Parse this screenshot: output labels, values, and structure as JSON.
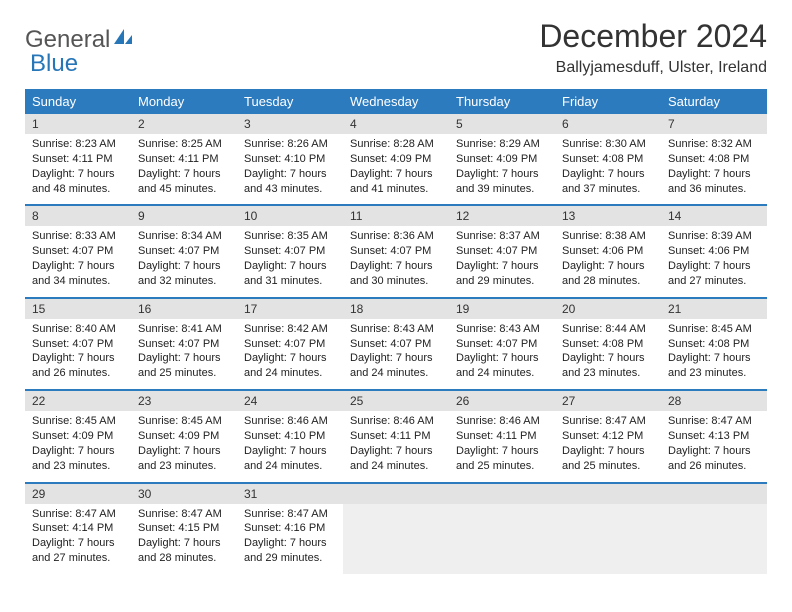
{
  "logo": {
    "part1": "General",
    "part2": "Blue"
  },
  "title": "December 2024",
  "location": "Ballyjamesduff, Ulster, Ireland",
  "colors": {
    "header_bg": "#2c7bbf",
    "header_text": "#ffffff",
    "daynum_bg": "#e3e3e3",
    "border": "#2c7bbf",
    "empty_bg": "#efefef"
  },
  "day_names": [
    "Sunday",
    "Monday",
    "Tuesday",
    "Wednesday",
    "Thursday",
    "Friday",
    "Saturday"
  ],
  "weeks": [
    [
      {
        "n": "1",
        "sr": "Sunrise: 8:23 AM",
        "ss": "Sunset: 4:11 PM",
        "dl": "Daylight: 7 hours and 48 minutes."
      },
      {
        "n": "2",
        "sr": "Sunrise: 8:25 AM",
        "ss": "Sunset: 4:11 PM",
        "dl": "Daylight: 7 hours and 45 minutes."
      },
      {
        "n": "3",
        "sr": "Sunrise: 8:26 AM",
        "ss": "Sunset: 4:10 PM",
        "dl": "Daylight: 7 hours and 43 minutes."
      },
      {
        "n": "4",
        "sr": "Sunrise: 8:28 AM",
        "ss": "Sunset: 4:09 PM",
        "dl": "Daylight: 7 hours and 41 minutes."
      },
      {
        "n": "5",
        "sr": "Sunrise: 8:29 AM",
        "ss": "Sunset: 4:09 PM",
        "dl": "Daylight: 7 hours and 39 minutes."
      },
      {
        "n": "6",
        "sr": "Sunrise: 8:30 AM",
        "ss": "Sunset: 4:08 PM",
        "dl": "Daylight: 7 hours and 37 minutes."
      },
      {
        "n": "7",
        "sr": "Sunrise: 8:32 AM",
        "ss": "Sunset: 4:08 PM",
        "dl": "Daylight: 7 hours and 36 minutes."
      }
    ],
    [
      {
        "n": "8",
        "sr": "Sunrise: 8:33 AM",
        "ss": "Sunset: 4:07 PM",
        "dl": "Daylight: 7 hours and 34 minutes."
      },
      {
        "n": "9",
        "sr": "Sunrise: 8:34 AM",
        "ss": "Sunset: 4:07 PM",
        "dl": "Daylight: 7 hours and 32 minutes."
      },
      {
        "n": "10",
        "sr": "Sunrise: 8:35 AM",
        "ss": "Sunset: 4:07 PM",
        "dl": "Daylight: 7 hours and 31 minutes."
      },
      {
        "n": "11",
        "sr": "Sunrise: 8:36 AM",
        "ss": "Sunset: 4:07 PM",
        "dl": "Daylight: 7 hours and 30 minutes."
      },
      {
        "n": "12",
        "sr": "Sunrise: 8:37 AM",
        "ss": "Sunset: 4:07 PM",
        "dl": "Daylight: 7 hours and 29 minutes."
      },
      {
        "n": "13",
        "sr": "Sunrise: 8:38 AM",
        "ss": "Sunset: 4:06 PM",
        "dl": "Daylight: 7 hours and 28 minutes."
      },
      {
        "n": "14",
        "sr": "Sunrise: 8:39 AM",
        "ss": "Sunset: 4:06 PM",
        "dl": "Daylight: 7 hours and 27 minutes."
      }
    ],
    [
      {
        "n": "15",
        "sr": "Sunrise: 8:40 AM",
        "ss": "Sunset: 4:07 PM",
        "dl": "Daylight: 7 hours and 26 minutes."
      },
      {
        "n": "16",
        "sr": "Sunrise: 8:41 AM",
        "ss": "Sunset: 4:07 PM",
        "dl": "Daylight: 7 hours and 25 minutes."
      },
      {
        "n": "17",
        "sr": "Sunrise: 8:42 AM",
        "ss": "Sunset: 4:07 PM",
        "dl": "Daylight: 7 hours and 24 minutes."
      },
      {
        "n": "18",
        "sr": "Sunrise: 8:43 AM",
        "ss": "Sunset: 4:07 PM",
        "dl": "Daylight: 7 hours and 24 minutes."
      },
      {
        "n": "19",
        "sr": "Sunrise: 8:43 AM",
        "ss": "Sunset: 4:07 PM",
        "dl": "Daylight: 7 hours and 24 minutes."
      },
      {
        "n": "20",
        "sr": "Sunrise: 8:44 AM",
        "ss": "Sunset: 4:08 PM",
        "dl": "Daylight: 7 hours and 23 minutes."
      },
      {
        "n": "21",
        "sr": "Sunrise: 8:45 AM",
        "ss": "Sunset: 4:08 PM",
        "dl": "Daylight: 7 hours and 23 minutes."
      }
    ],
    [
      {
        "n": "22",
        "sr": "Sunrise: 8:45 AM",
        "ss": "Sunset: 4:09 PM",
        "dl": "Daylight: 7 hours and 23 minutes."
      },
      {
        "n": "23",
        "sr": "Sunrise: 8:45 AM",
        "ss": "Sunset: 4:09 PM",
        "dl": "Daylight: 7 hours and 23 minutes."
      },
      {
        "n": "24",
        "sr": "Sunrise: 8:46 AM",
        "ss": "Sunset: 4:10 PM",
        "dl": "Daylight: 7 hours and 24 minutes."
      },
      {
        "n": "25",
        "sr": "Sunrise: 8:46 AM",
        "ss": "Sunset: 4:11 PM",
        "dl": "Daylight: 7 hours and 24 minutes."
      },
      {
        "n": "26",
        "sr": "Sunrise: 8:46 AM",
        "ss": "Sunset: 4:11 PM",
        "dl": "Daylight: 7 hours and 25 minutes."
      },
      {
        "n": "27",
        "sr": "Sunrise: 8:47 AM",
        "ss": "Sunset: 4:12 PM",
        "dl": "Daylight: 7 hours and 25 minutes."
      },
      {
        "n": "28",
        "sr": "Sunrise: 8:47 AM",
        "ss": "Sunset: 4:13 PM",
        "dl": "Daylight: 7 hours and 26 minutes."
      }
    ],
    [
      {
        "n": "29",
        "sr": "Sunrise: 8:47 AM",
        "ss": "Sunset: 4:14 PM",
        "dl": "Daylight: 7 hours and 27 minutes."
      },
      {
        "n": "30",
        "sr": "Sunrise: 8:47 AM",
        "ss": "Sunset: 4:15 PM",
        "dl": "Daylight: 7 hours and 28 minutes."
      },
      {
        "n": "31",
        "sr": "Sunrise: 8:47 AM",
        "ss": "Sunset: 4:16 PM",
        "dl": "Daylight: 7 hours and 29 minutes."
      },
      null,
      null,
      null,
      null
    ]
  ]
}
